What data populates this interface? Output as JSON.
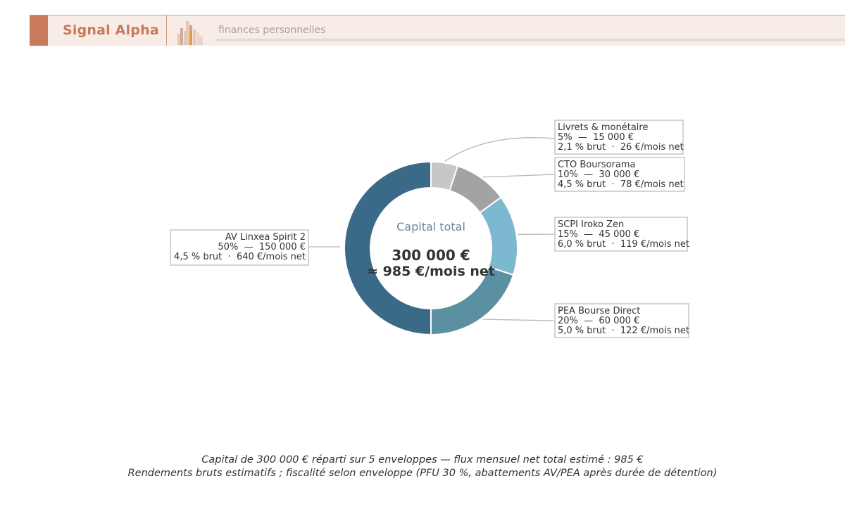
{
  "header": {
    "brand": "Signal Alpha",
    "tagline": "finances personnelles"
  },
  "chart_data": {
    "type": "pie",
    "donut": true,
    "center_label": "Capital total",
    "center_value": "300 000 €",
    "center_sub": "≈ 985 €/mois net",
    "slices": [
      {
        "name": "Livrets & monétaire",
        "percent": 5,
        "line2": "5%  —  15 000 €",
        "line3": "2,1 % brut  ·  26 €/mois net",
        "value": 15000,
        "color": "#c7c7c7"
      },
      {
        "name": "CTO Boursorama",
        "percent": 10,
        "line2": "10%  —  30 000 €",
        "line3": "4,5 % brut  ·  78 €/mois net",
        "value": 30000,
        "color": "#a3a3a3"
      },
      {
        "name": "SCPI Iroko Zen",
        "percent": 15,
        "line2": "15%  —  45 000 €",
        "line3": "6,0 % brut  ·  119 €/mois net",
        "value": 45000,
        "color": "#7cb8cf"
      },
      {
        "name": "PEA Bourse Direct",
        "percent": 20,
        "line2": "20%  —  60 000 €",
        "line3": "5,0 % brut  ·  122 €/mois net",
        "value": 60000,
        "color": "#5b8fa2"
      },
      {
        "name": "AV Linxea Spirit 2",
        "percent": 50,
        "line2": "50%  —  150 000 €",
        "line3": "4,5 % brut  ·  640 €/mois net",
        "value": 150000,
        "color": "#3b6a88"
      }
    ],
    "colors": {
      "leader": "#b8b8b8",
      "label_border": "#bdbdbd",
      "center_label": "#6b8797",
      "center_value": "#333333"
    }
  },
  "footer": {
    "line1": "Capital de 300 000 € réparti sur 5 enveloppes — flux mensuel net total estimé : 985 €",
    "line2": "Rendements bruts estimatifs ; fiscalité selon enveloppe (PFU 30 %, abattements AV/PEA après durée de détention)"
  }
}
